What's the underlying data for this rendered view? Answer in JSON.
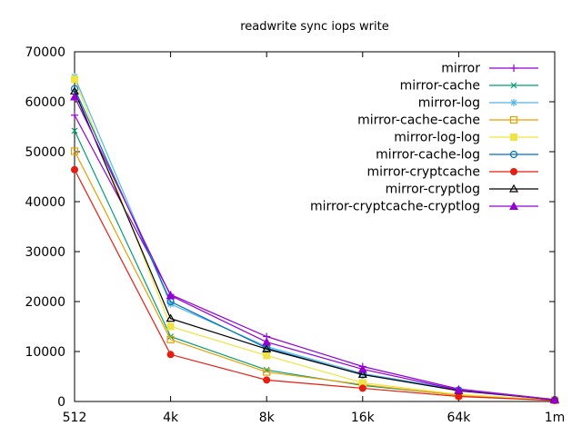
{
  "chart_data": {
    "type": "line",
    "title": "readwrite sync iops write",
    "xlabel": "",
    "ylabel": "",
    "categories": [
      "512",
      "4k",
      "8k",
      "16k",
      "64k",
      "1m"
    ],
    "ylim": [
      0,
      70000
    ],
    "ytick_labels": [
      "0",
      "10000",
      "20000",
      "30000",
      "40000",
      "50000",
      "60000",
      "70000"
    ],
    "grid": false,
    "legend_position": "top-right-inside",
    "border_color": "#000000",
    "background_color": "#ffffff",
    "series": [
      {
        "name": "mirror",
        "color": "#9400d3",
        "marker": "plus",
        "values": [
          57300,
          21400,
          13000,
          7000,
          2500,
          400
        ]
      },
      {
        "name": "mirror-cache",
        "color": "#009e73",
        "marker": "x",
        "values": [
          54200,
          13000,
          6300,
          3200,
          1300,
          300
        ]
      },
      {
        "name": "mirror-log",
        "color": "#56b4e9",
        "marker": "asterisk",
        "values": [
          65000,
          19500,
          11000,
          5600,
          2350,
          350
        ]
      },
      {
        "name": "mirror-cache-cache",
        "color": "#e69f00",
        "marker": "square-open",
        "values": [
          50100,
          12400,
          5900,
          3400,
          1200,
          250
        ]
      },
      {
        "name": "mirror-log-log",
        "color": "#f0e442",
        "marker": "square-filled",
        "values": [
          64500,
          15000,
          9200,
          3750,
          1400,
          300
        ]
      },
      {
        "name": "mirror-cache-log",
        "color": "#0072b2",
        "marker": "circle-open",
        "values": [
          62600,
          20000,
          10700,
          5350,
          2250,
          350
        ]
      },
      {
        "name": "mirror-cryptcache",
        "color": "#e51e10",
        "marker": "circle-filled",
        "values": [
          46400,
          9400,
          4300,
          2650,
          1000,
          200
        ]
      },
      {
        "name": "mirror-cryptlog",
        "color": "#000000",
        "marker": "triangle-open",
        "values": [
          62100,
          16600,
          10500,
          5400,
          2150,
          350
        ]
      },
      {
        "name": "mirror-cryptcache-cryptlog",
        "color": "#9400d3",
        "marker": "triangle-filled",
        "values": [
          61000,
          21200,
          11900,
          6470,
          2300,
          350
        ]
      }
    ]
  }
}
